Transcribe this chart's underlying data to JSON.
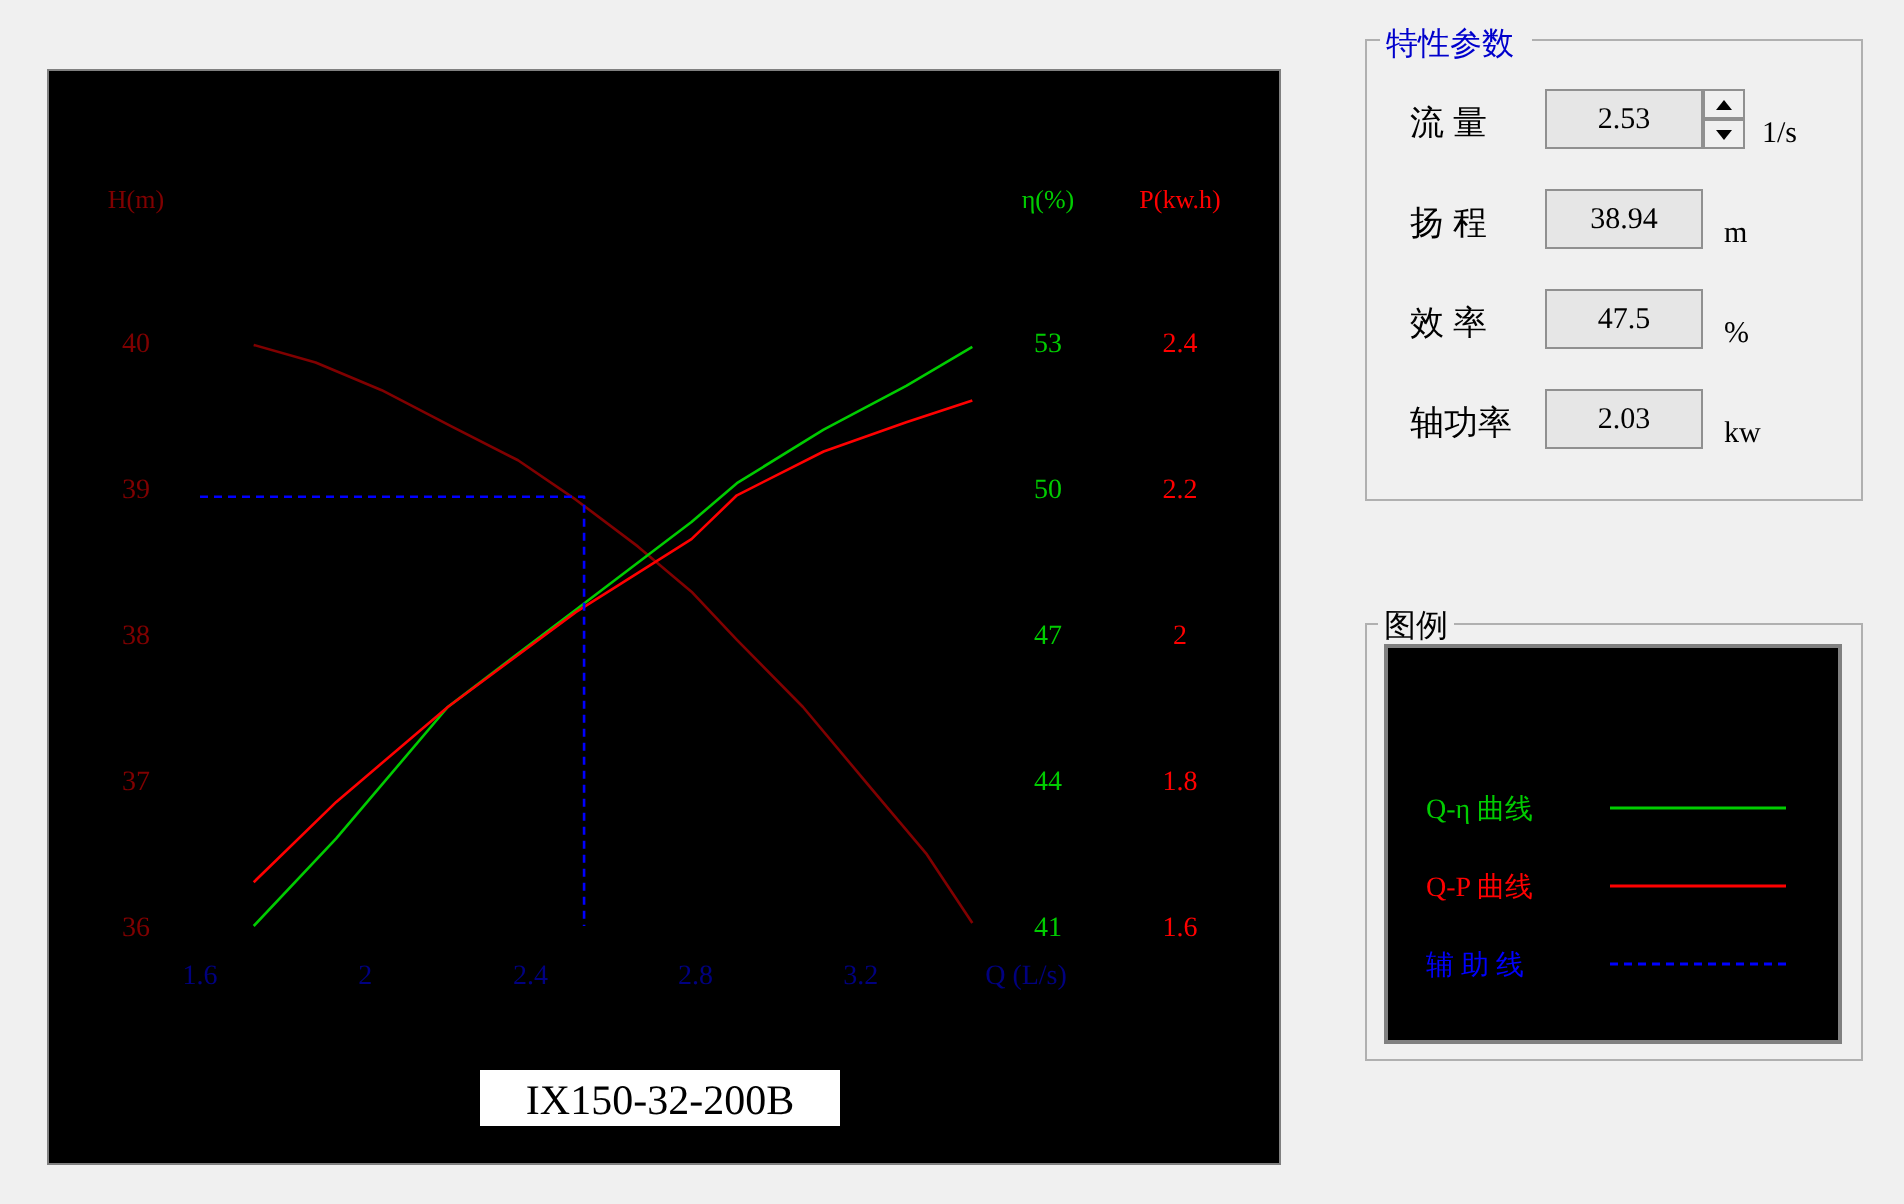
{
  "chart_data": [
    {
      "type": "line",
      "title": "IX150-32-200B",
      "ylabel": "H(m)",
      "y2label": "η(%)",
      "y3label": "P(kw.h)",
      "legend_title": "图例",
      "legend": "right",
      "xlim": [
        1.6,
        3.6
      ],
      "xticks": [
        1.6,
        2,
        2.4,
        2.8,
        3.2,
        {
          "value": 3.6,
          "label": "Q (L/s)"
        }
      ],
      "ylim": [
        36,
        40
      ],
      "yticks": [
        36,
        37,
        38,
        39,
        40
      ],
      "y2lim": [
        41,
        53
      ],
      "y2ticks": [
        41,
        44,
        47,
        50,
        53
      ],
      "y3lim": [
        1.6,
        2.4
      ],
      "y3ticks": [
        1.6,
        1.8,
        2,
        2.2,
        2.4
      ],
      "series": [
        {
          "color": "#800000",
          "x": [
            1.73,
            1.88,
            2.04,
            2.21,
            2.37,
            2.51,
            2.66,
            2.79,
            2.9,
            3.06,
            3.22,
            3.36,
            3.47
          ],
          "values": [
            39.98,
            39.86,
            39.67,
            39.42,
            39.19,
            38.92,
            38.6,
            38.29,
            37.96,
            37.5,
            36.96,
            36.49,
            36.02
          ]
        },
        {
          "name": "Q-η 曲线",
          "color": "#00cc00",
          "axis": "y2",
          "x": [
            1.73,
            1.93,
            2.2,
            2.51,
            2.79,
            2.9,
            3.11,
            3.31,
            3.47
          ],
          "values": [
            41.0,
            42.8,
            45.5,
            47.5,
            49.3,
            50.1,
            51.2,
            52.1,
            52.9
          ]
        },
        {
          "name": "Q-P 曲线",
          "color": "#ff0000",
          "axis": "y3",
          "x": [
            1.73,
            1.93,
            2.2,
            2.51,
            2.79,
            2.9,
            3.11,
            3.31,
            3.47
          ],
          "values": [
            1.66,
            1.77,
            1.9,
            2.03,
            2.13,
            2.19,
            2.25,
            2.29,
            2.32
          ]
        },
        {
          "name": "辅 助 线",
          "color": "#0000ff",
          "line_style": "dashed",
          "x": [
            1.6,
            2.53,
            2.53
          ],
          "values": [
            38.94,
            38.94,
            36
          ]
        }
      ]
    },
    {
      "type": "other",
      "title": "特性参数",
      "annotations": [
        "流 量",
        "2.53",
        "1/s",
        "扬 程",
        "38.94",
        "m",
        "效 率",
        "47.5",
        "%",
        "轴功率",
        "2.03",
        "kw"
      ]
    }
  ]
}
